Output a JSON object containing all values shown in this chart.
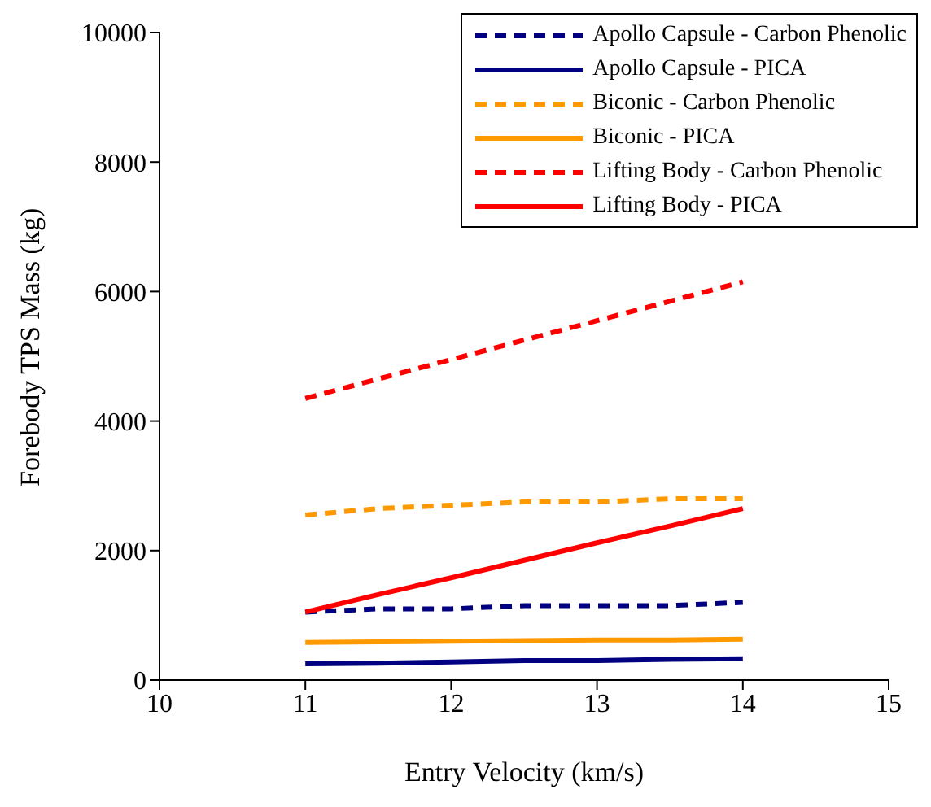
{
  "chart_data": {
    "type": "line",
    "xlabel": "Entry Velocity (km/s)",
    "ylabel": "Forebody TPS Mass (kg)",
    "x": [
      11,
      11.5,
      12,
      12.5,
      13,
      13.5,
      14
    ],
    "xlim": [
      10,
      15
    ],
    "xticks": [
      10,
      11,
      12,
      13,
      14,
      15
    ],
    "ylim": [
      0,
      10000
    ],
    "yticks": [
      0,
      2000,
      4000,
      6000,
      8000,
      10000
    ],
    "grid": false,
    "legend": "top right",
    "marker": "none",
    "series": [
      {
        "name": "Apollo Capsule - Carbon Phenolic",
        "color": "#000080",
        "line_style": "dashed",
        "values": [
          1050,
          1100,
          1100,
          1150,
          1150,
          1150,
          1200
        ]
      },
      {
        "name": "Apollo Capsule - PICA",
        "color": "#000080",
        "line_style": "solid",
        "values": [
          250,
          260,
          280,
          300,
          300,
          320,
          330
        ]
      },
      {
        "name": "Biconic - Carbon Phenolic",
        "color": "#ff9900",
        "line_style": "dashed",
        "values": [
          2550,
          2650,
          2700,
          2750,
          2750,
          2800,
          2800
        ]
      },
      {
        "name": "Biconic - PICA",
        "color": "#ff9900",
        "line_style": "solid",
        "values": [
          580,
          590,
          600,
          610,
          620,
          620,
          630
        ]
      },
      {
        "name": "Lifting Body - Carbon Phenolic",
        "color": "#ff0000",
        "line_style": "dashed",
        "values": [
          4350,
          4650,
          4950,
          5250,
          5550,
          5850,
          6150
        ]
      },
      {
        "name": "Lifting Body - PICA",
        "color": "#ff0000",
        "line_style": "solid",
        "values": [
          1050,
          1320,
          1580,
          1850,
          2120,
          2380,
          2650
        ]
      }
    ]
  }
}
